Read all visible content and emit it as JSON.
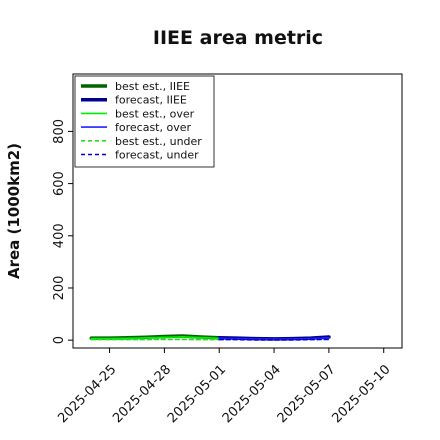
{
  "chart_data": {
    "type": "line",
    "title": "IIEE area metric",
    "xlabel": "",
    "ylabel": "Area (1000km2)",
    "x_ticks": [
      "2025-04-25",
      "2025-04-28",
      "2025-05-01",
      "2025-05-04",
      "2025-05-07",
      "2025-05-10"
    ],
    "highlighted_x_tick": "2025-05-01",
    "highlight_color": "#228b22",
    "xlim": [
      "2025-04-23",
      "2025-05-11"
    ],
    "y_ticks": [
      0,
      200,
      400,
      600,
      800
    ],
    "ylim": [
      -30,
      1020
    ],
    "y_tick_labels_rotated": true,
    "grid": false,
    "legend_position": "top-left",
    "series": [
      {
        "name": "best est., IIEE",
        "color": "#006400",
        "style": "solid",
        "width": "thick",
        "x": [
          "2025-04-24",
          "2025-04-25",
          "2025-04-26",
          "2025-04-27",
          "2025-04-28",
          "2025-04-29",
          "2025-04-30",
          "2025-05-01"
        ],
        "y": [
          8,
          8,
          9,
          11,
          14,
          16,
          12,
          9
        ]
      },
      {
        "name": "forecast, IIEE",
        "color": "#00008b",
        "style": "solid",
        "width": "thick",
        "x": [
          "2025-05-01",
          "2025-05-02",
          "2025-05-03",
          "2025-05-04",
          "2025-05-05",
          "2025-05-06",
          "2025-05-07"
        ],
        "y": [
          9,
          8,
          6,
          5,
          6,
          8,
          12
        ]
      },
      {
        "name": "best est., over",
        "color": "#00ee00",
        "style": "solid",
        "width": "thin",
        "x": [
          "2025-04-24",
          "2025-04-25",
          "2025-04-26",
          "2025-04-27",
          "2025-04-28",
          "2025-04-29",
          "2025-04-30",
          "2025-05-01"
        ],
        "y": [
          6,
          6,
          7,
          9,
          11,
          13,
          10,
          7
        ]
      },
      {
        "name": "forecast, over",
        "color": "#2222ff",
        "style": "solid",
        "width": "thin",
        "x": [
          "2025-05-01",
          "2025-05-02",
          "2025-05-03",
          "2025-05-04",
          "2025-05-05",
          "2025-05-06",
          "2025-05-07"
        ],
        "y": [
          7,
          6,
          5,
          4,
          5,
          6,
          9
        ]
      },
      {
        "name": "best est., under",
        "color": "#22dd22",
        "style": "dashed",
        "width": "thin",
        "x": [
          "2025-04-24",
          "2025-04-25",
          "2025-04-26",
          "2025-04-27",
          "2025-04-28",
          "2025-04-29",
          "2025-04-30",
          "2025-05-01"
        ],
        "y": [
          2,
          2,
          2,
          2,
          3,
          3,
          2,
          2
        ]
      },
      {
        "name": "forecast, under",
        "color": "#0000cc",
        "style": "dashed",
        "width": "thin",
        "x": [
          "2025-05-01",
          "2025-05-02",
          "2025-05-03",
          "2025-05-04",
          "2025-05-05",
          "2025-05-06",
          "2025-05-07"
        ],
        "y": [
          2,
          2,
          1,
          1,
          1,
          2,
          3
        ]
      }
    ]
  }
}
